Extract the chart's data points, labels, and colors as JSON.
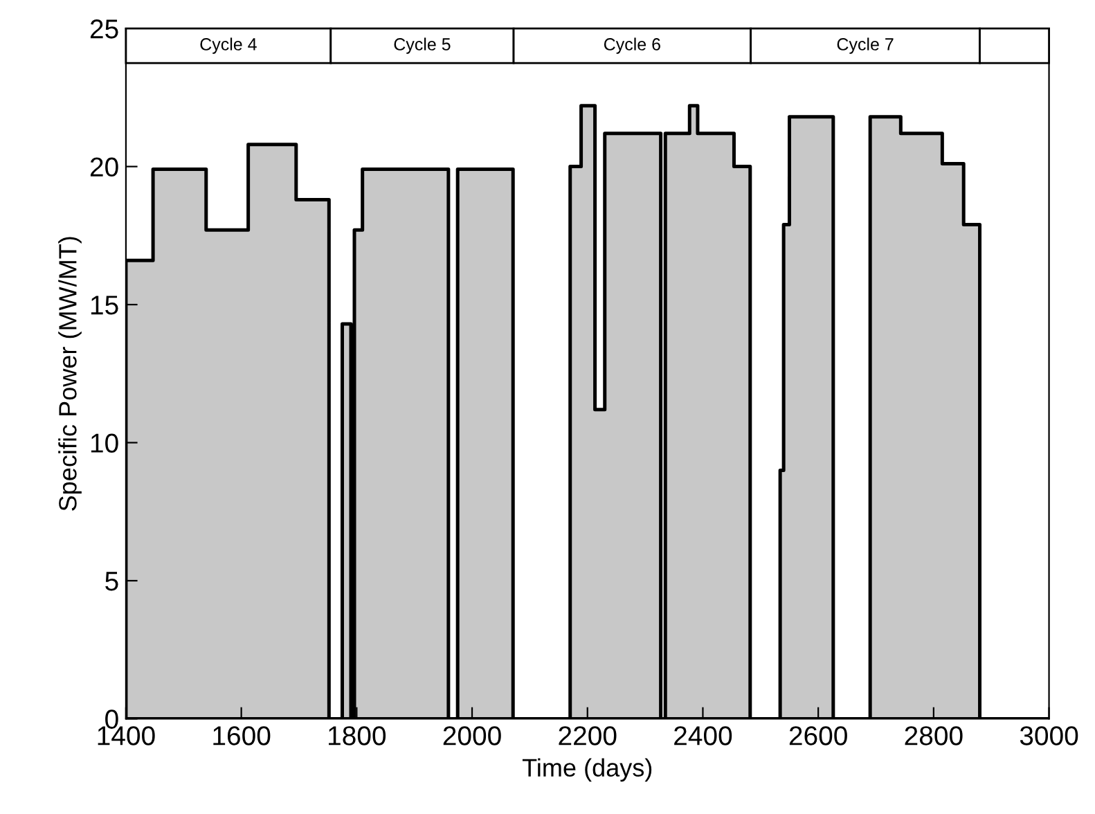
{
  "chart_data": {
    "type": "area",
    "xlabel": "Time (days)",
    "ylabel": "Specific Power (MW/MT)",
    "xlim": [
      1400,
      3000
    ],
    "xticks": [
      1400,
      1600,
      1800,
      2000,
      2200,
      2400,
      2600,
      2800,
      3000
    ],
    "ylim": [
      0,
      25
    ],
    "yticks": [
      0,
      5,
      10,
      15,
      20,
      25
    ],
    "grid": false,
    "legend": false,
    "series": [
      {
        "color": "#c8c8c8",
        "x": [
          1400,
          1447,
          1539,
          1612,
          1695,
          1752,
          1775,
          1790,
          1796,
          1810,
          1959,
          1975,
          2071,
          2170,
          2189,
          2213,
          2230,
          2327,
          2335,
          2377,
          2391,
          2454,
          2482,
          2534,
          2540,
          2550,
          2626,
          2690,
          2743,
          2815,
          2852,
          2880,
          3000
        ],
        "values": [
          16.6,
          19.9,
          17.7,
          20.8,
          18.8,
          0,
          14.3,
          0,
          17.7,
          19.9,
          0,
          19.9,
          0,
          20.0,
          22.2,
          11.2,
          21.2,
          0,
          21.2,
          22.2,
          21.2,
          20.0,
          0,
          9.0,
          17.9,
          21.8,
          0,
          21.8,
          21.2,
          20.1,
          17.9,
          0,
          0
        ]
      }
    ],
    "bands": [
      {
        "axis": "x",
        "from": 1400,
        "to": 1755,
        "label": "Cycle 4"
      },
      {
        "axis": "x",
        "from": 1755,
        "to": 2072,
        "label": "Cycle 5"
      },
      {
        "axis": "x",
        "from": 2072,
        "to": 2483,
        "label": "Cycle 6"
      },
      {
        "axis": "x",
        "from": 2483,
        "to": 2880,
        "label": "Cycle 7"
      },
      {
        "axis": "x",
        "from": 2880,
        "to": 3000,
        "label": null
      }
    ]
  }
}
